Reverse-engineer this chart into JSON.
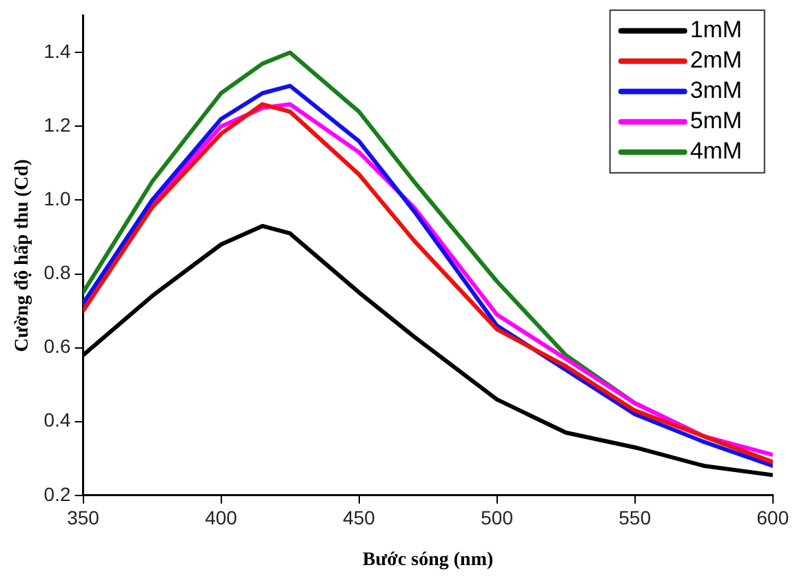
{
  "chart_data": {
    "type": "line",
    "xlabel": "Bước sóng (nm)",
    "ylabel": "Cường độ hấp thu (Cd)",
    "x": [
      350,
      375,
      400,
      415,
      425,
      450,
      470,
      500,
      525,
      550,
      575,
      600
    ],
    "xlim": [
      350,
      600
    ],
    "xticks": [
      350,
      400,
      450,
      500,
      550,
      600
    ],
    "ylim": [
      0.2,
      1.5
    ],
    "yticks": [
      0.2,
      0.4,
      0.6,
      0.8,
      {
        "value": 1,
        "label": "1.0"
      },
      1.2,
      1.4
    ],
    "grid": false,
    "legend": "top right",
    "marker": "none",
    "line_style": "solid",
    "series": [
      {
        "name": "1mM",
        "color": "#000000",
        "values": [
          0.58,
          0.74,
          0.88,
          0.93,
          0.91,
          0.75,
          0.63,
          0.46,
          0.37,
          0.33,
          0.28,
          0.255
        ]
      },
      {
        "name": "2mM",
        "color": "#ee1111",
        "values": [
          0.7,
          0.98,
          1.18,
          1.26,
          1.24,
          1.07,
          0.89,
          0.65,
          0.55,
          0.43,
          0.36,
          0.29
        ]
      },
      {
        "name": "3mM",
        "color": "#1111ee",
        "values": [
          0.72,
          1.0,
          1.22,
          1.29,
          1.31,
          1.16,
          0.97,
          0.66,
          0.54,
          0.42,
          0.345,
          0.28
        ]
      },
      {
        "name": "5mM",
        "color": "#ff00ff",
        "values": [
          0.72,
          0.99,
          1.2,
          1.25,
          1.26,
          1.13,
          0.98,
          0.69,
          0.57,
          0.45,
          0.36,
          0.31
        ]
      },
      {
        "name": "4mM",
        "color": "#1a7f1a",
        "values": [
          0.75,
          1.05,
          1.29,
          1.37,
          1.4,
          1.24,
          1.05,
          0.78,
          0.58,
          0.45,
          0.36,
          0.29
        ]
      }
    ]
  }
}
